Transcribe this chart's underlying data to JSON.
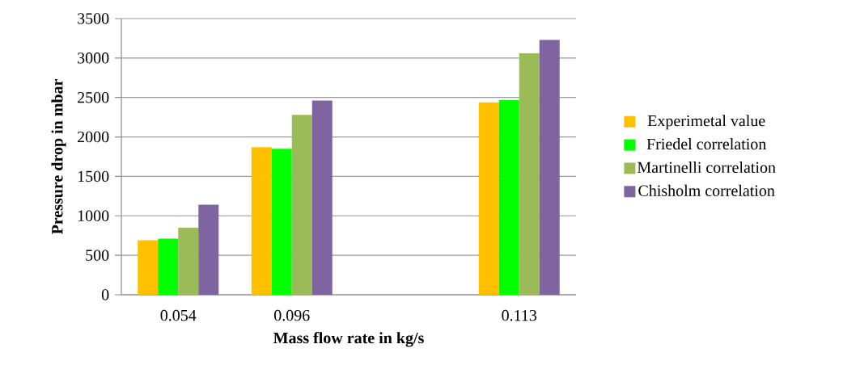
{
  "chart_data": {
    "type": "bar",
    "xlabel": "Mass flow rate in kg/s",
    "ylabel": "Pressure drop in mbar",
    "categories": [
      "0.054",
      "0.096",
      null,
      "0.113"
    ],
    "series": [
      {
        "name": "Experimetal value",
        "color": "#ffc000",
        "values": [
          690,
          1870,
          null,
          2440
        ]
      },
      {
        "name": "Friedel correlation",
        "color": "#00ff00",
        "values": [
          710,
          1850,
          null,
          2470
        ]
      },
      {
        "name": "Martinelli correlation",
        "color": "#9bbb59",
        "values": [
          850,
          2280,
          null,
          3060
        ]
      },
      {
        "name": "Chisholm correlation",
        "color": "#8064a2",
        "values": [
          1140,
          2460,
          null,
          3230
        ]
      }
    ],
    "ylim": [
      0,
      3500
    ],
    "yticks": [
      0,
      500,
      1000,
      1500,
      2000,
      2500,
      3000,
      3500
    ],
    "grid": "y",
    "legend": "right"
  }
}
